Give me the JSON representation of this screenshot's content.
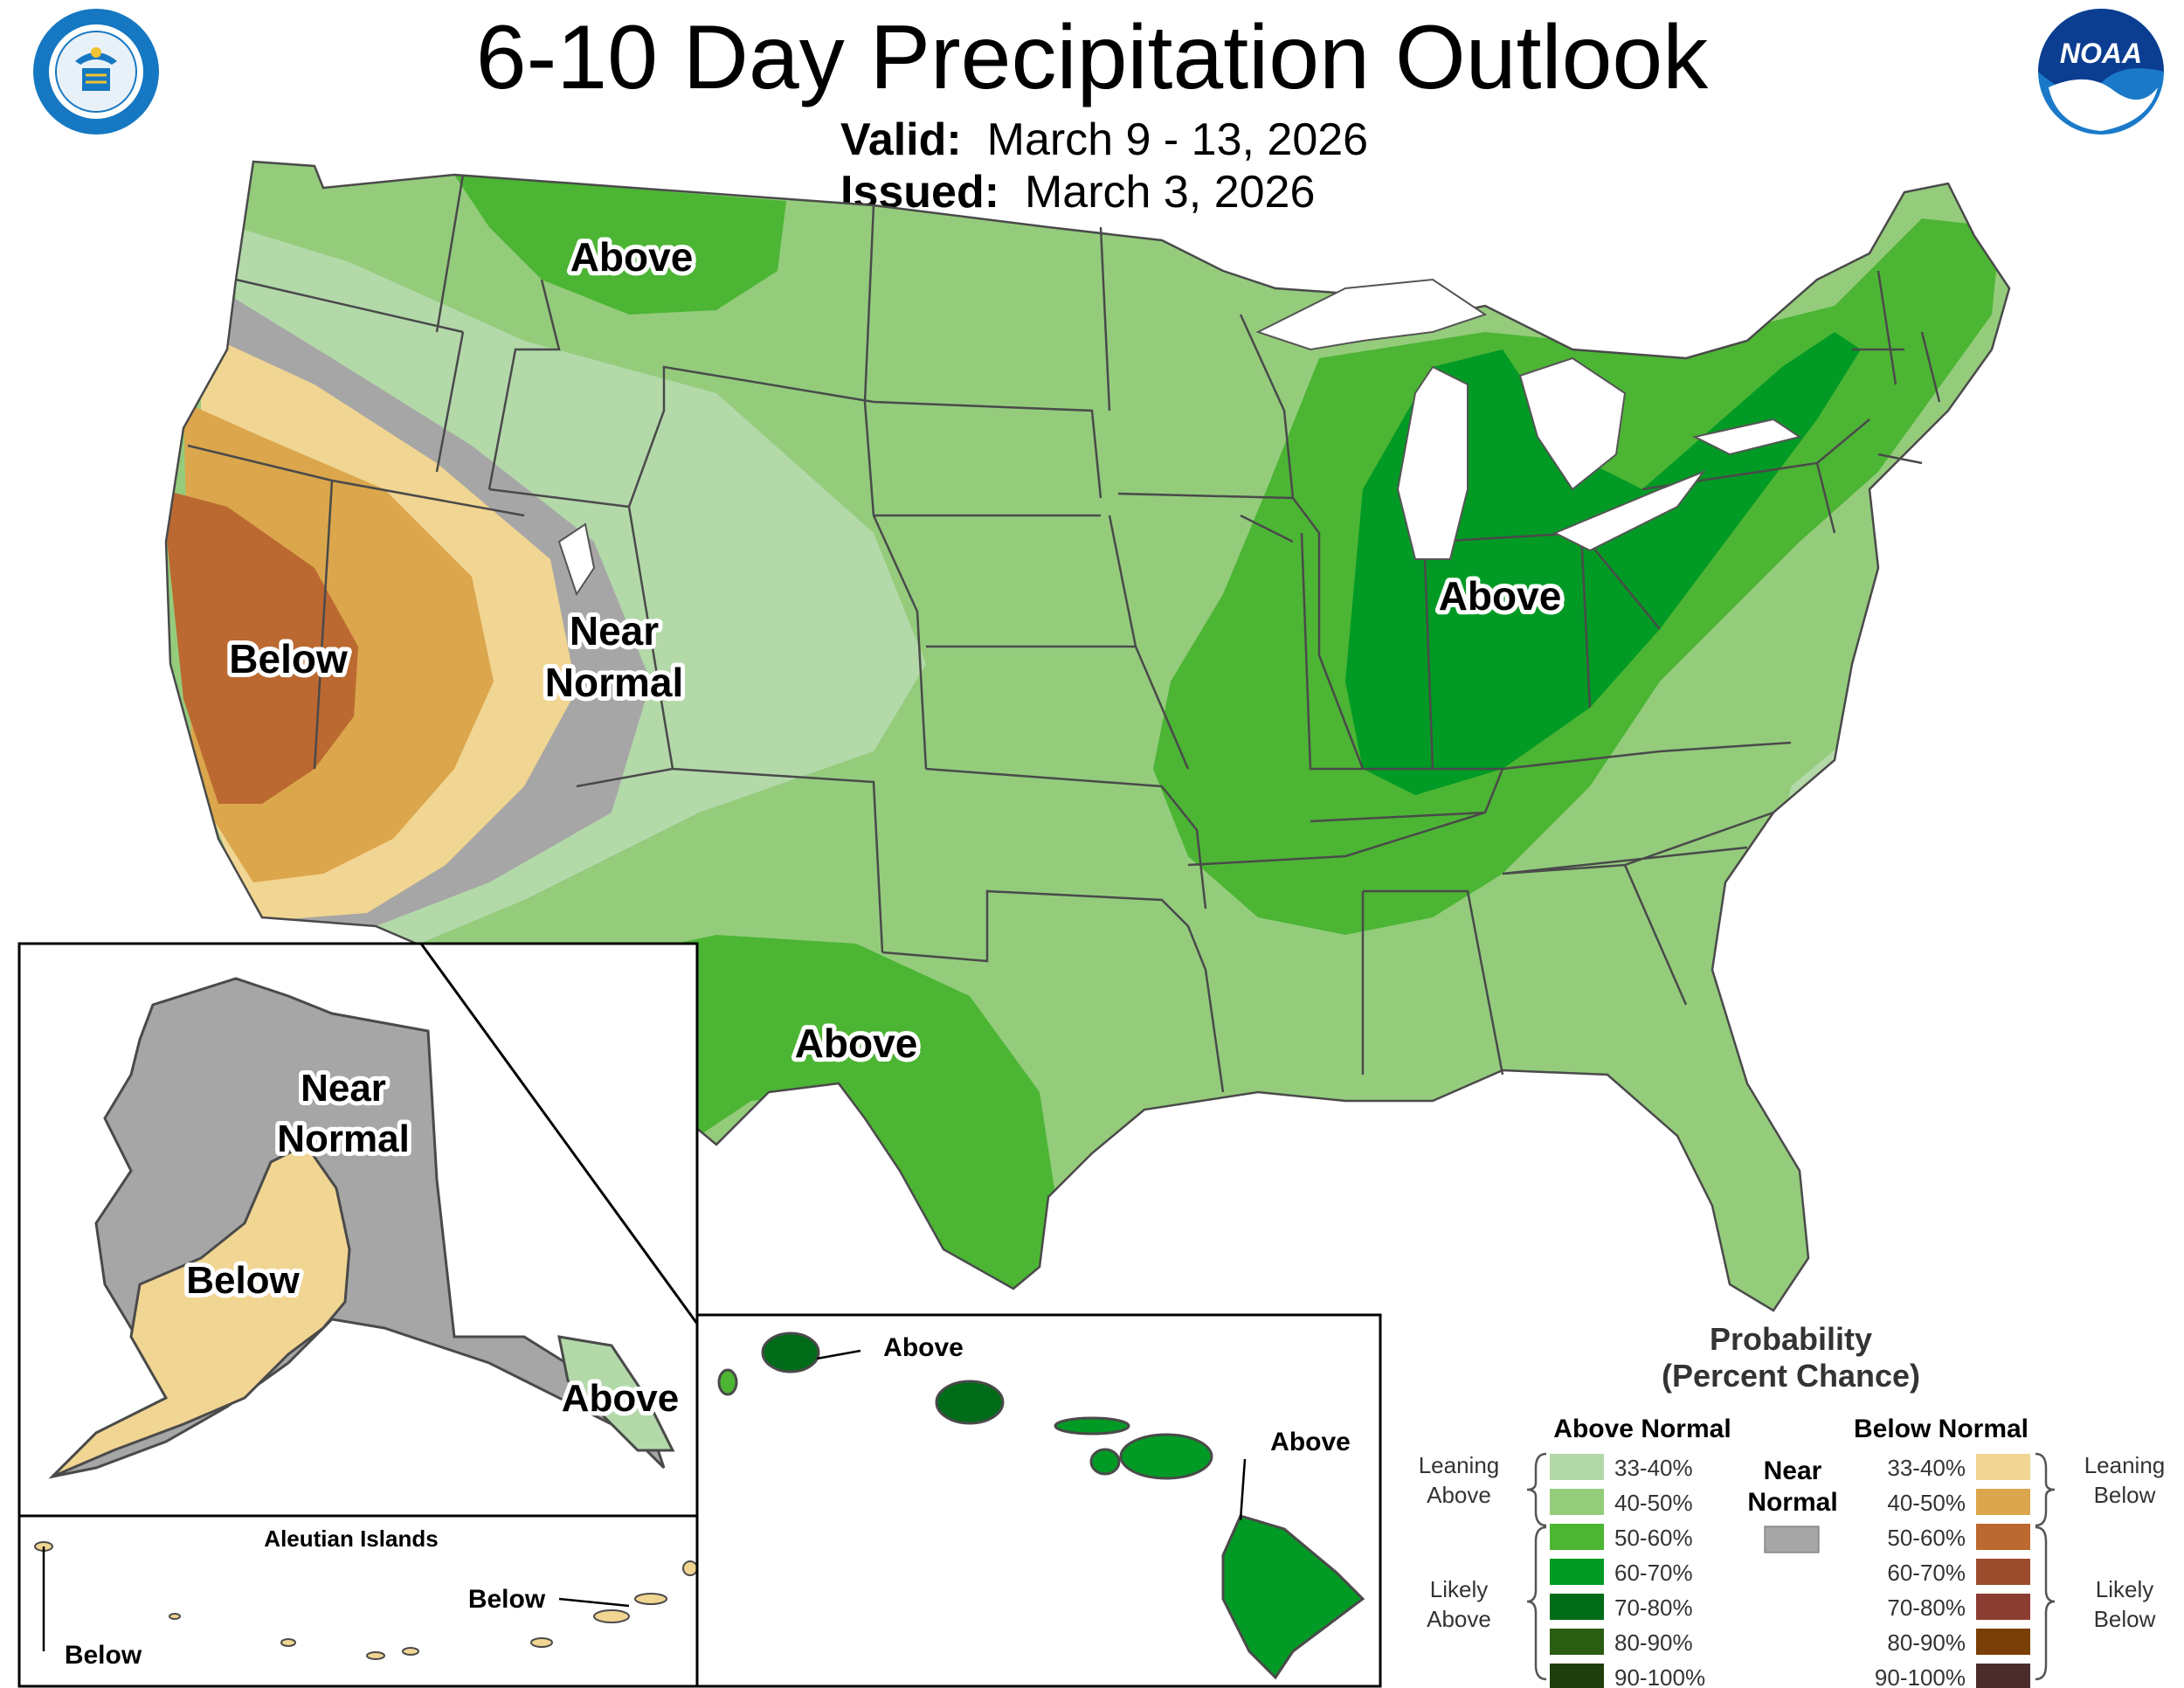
{
  "header": {
    "title": "6-10 Day Precipitation Outlook",
    "valid_label": "Valid:",
    "valid_value": "March 9 - 13, 2026",
    "issued_label": "Issued:",
    "issued_value": "March 3, 2026"
  },
  "logos": {
    "commerce": "department-of-commerce-seal",
    "noaa": "NOAA",
    "noaa_brand_color": "#1a7ac9"
  },
  "conus_labels": {
    "above_northwest": "Above",
    "below_california": "Below",
    "near_normal_line1": "Near",
    "near_normal_line2": "Normal",
    "above_ohio_valley": "Above",
    "above_southwest": "Above"
  },
  "alaska": {
    "near_normal_line1": "Near",
    "near_normal_line2": "Normal",
    "below": "Below",
    "above": "Above"
  },
  "aleutians": {
    "title": "Aleutian Islands",
    "below_east": "Below",
    "below_west": "Below"
  },
  "hawaii": {
    "above_kauai": "Above",
    "above_big_island": "Above"
  },
  "legend": {
    "title_line1": "Probability",
    "title_line2": "(Percent Chance)",
    "above_header": "Above Normal",
    "below_header": "Below Normal",
    "near_header_line1": "Near",
    "near_header_line2": "Normal",
    "leaning_above_line1": "Leaning",
    "leaning_above_line2": "Above",
    "likely_above_line1": "Likely",
    "likely_above_line2": "Above",
    "leaning_below_line1": "Leaning",
    "leaning_below_line2": "Below",
    "likely_below_line1": "Likely",
    "likely_below_line2": "Below",
    "near_color": "#a6a6a6",
    "above_bins": [
      {
        "range": "33-40%",
        "color": "#b3d9a9"
      },
      {
        "range": "40-50%",
        "color": "#94cc7c"
      },
      {
        "range": "50-60%",
        "color": "#4cb534"
      },
      {
        "range": "60-70%",
        "color": "#009a24"
      },
      {
        "range": "70-80%",
        "color": "#006b18"
      },
      {
        "range": "80-90%",
        "color": "#2a5c12"
      },
      {
        "range": "90-100%",
        "color": "#1f3d0d"
      }
    ],
    "below_bins": [
      {
        "range": "33-40%",
        "color": "#f1d592"
      },
      {
        "range": "40-50%",
        "color": "#dba64c"
      },
      {
        "range": "50-60%",
        "color": "#bb6930"
      },
      {
        "range": "60-70%",
        "color": "#9b4c2c"
      },
      {
        "range": "70-80%",
        "color": "#8c3d32"
      },
      {
        "range": "80-90%",
        "color": "#7a3f06"
      },
      {
        "range": "90-100%",
        "color": "#4b2b2b"
      }
    ]
  }
}
